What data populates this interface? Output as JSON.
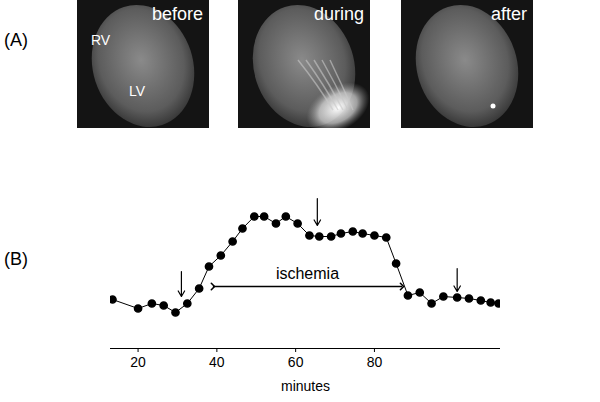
{
  "panel_a": {
    "label": "(A)",
    "images": [
      {
        "label": "before",
        "annotations": [
          "RV",
          "LV"
        ]
      },
      {
        "label": "during",
        "annotations": []
      },
      {
        "label": "after",
        "annotations": []
      }
    ]
  },
  "chart_data": {
    "panel_label": "(B)",
    "type": "line",
    "marker": "circle",
    "color": "#000000",
    "x": [
      13.5,
      20,
      23.5,
      26.5,
      29.5,
      32.5,
      35.5,
      38,
      41,
      44,
      46.5,
      49.5,
      52,
      55,
      57.5,
      60.5,
      63.5,
      66,
      69,
      71.5,
      74.5,
      77,
      80,
      83,
      85.5,
      88.5,
      91.5,
      94.5,
      97.5,
      101,
      104,
      107,
      109.5,
      111.5
    ],
    "values": [
      24,
      15,
      20,
      18,
      11,
      20,
      35,
      57,
      68,
      82,
      95,
      107,
      107,
      100,
      107,
      100,
      88,
      87,
      87,
      90,
      92,
      90,
      88,
      86,
      60,
      28,
      31,
      20,
      27,
      26,
      25,
      23,
      21,
      20
    ],
    "xlim": [
      13,
      112
    ],
    "xticks": [
      20,
      40,
      60,
      80
    ],
    "ylim": [
      -25,
      130
    ],
    "tick_labels": "x",
    "xlabel": "minutes",
    "annotations": [
      {
        "text": "ischemia",
        "x": [
          39,
          87
        ],
        "y": 37
      }
    ],
    "arrows": [
      {
        "x": 31,
        "y": [
          52,
          27
        ]
      },
      {
        "x": 65.5,
        "y": [
          125,
          98
        ]
      },
      {
        "x": 101,
        "y": [
          55,
          32
        ]
      }
    ]
  }
}
